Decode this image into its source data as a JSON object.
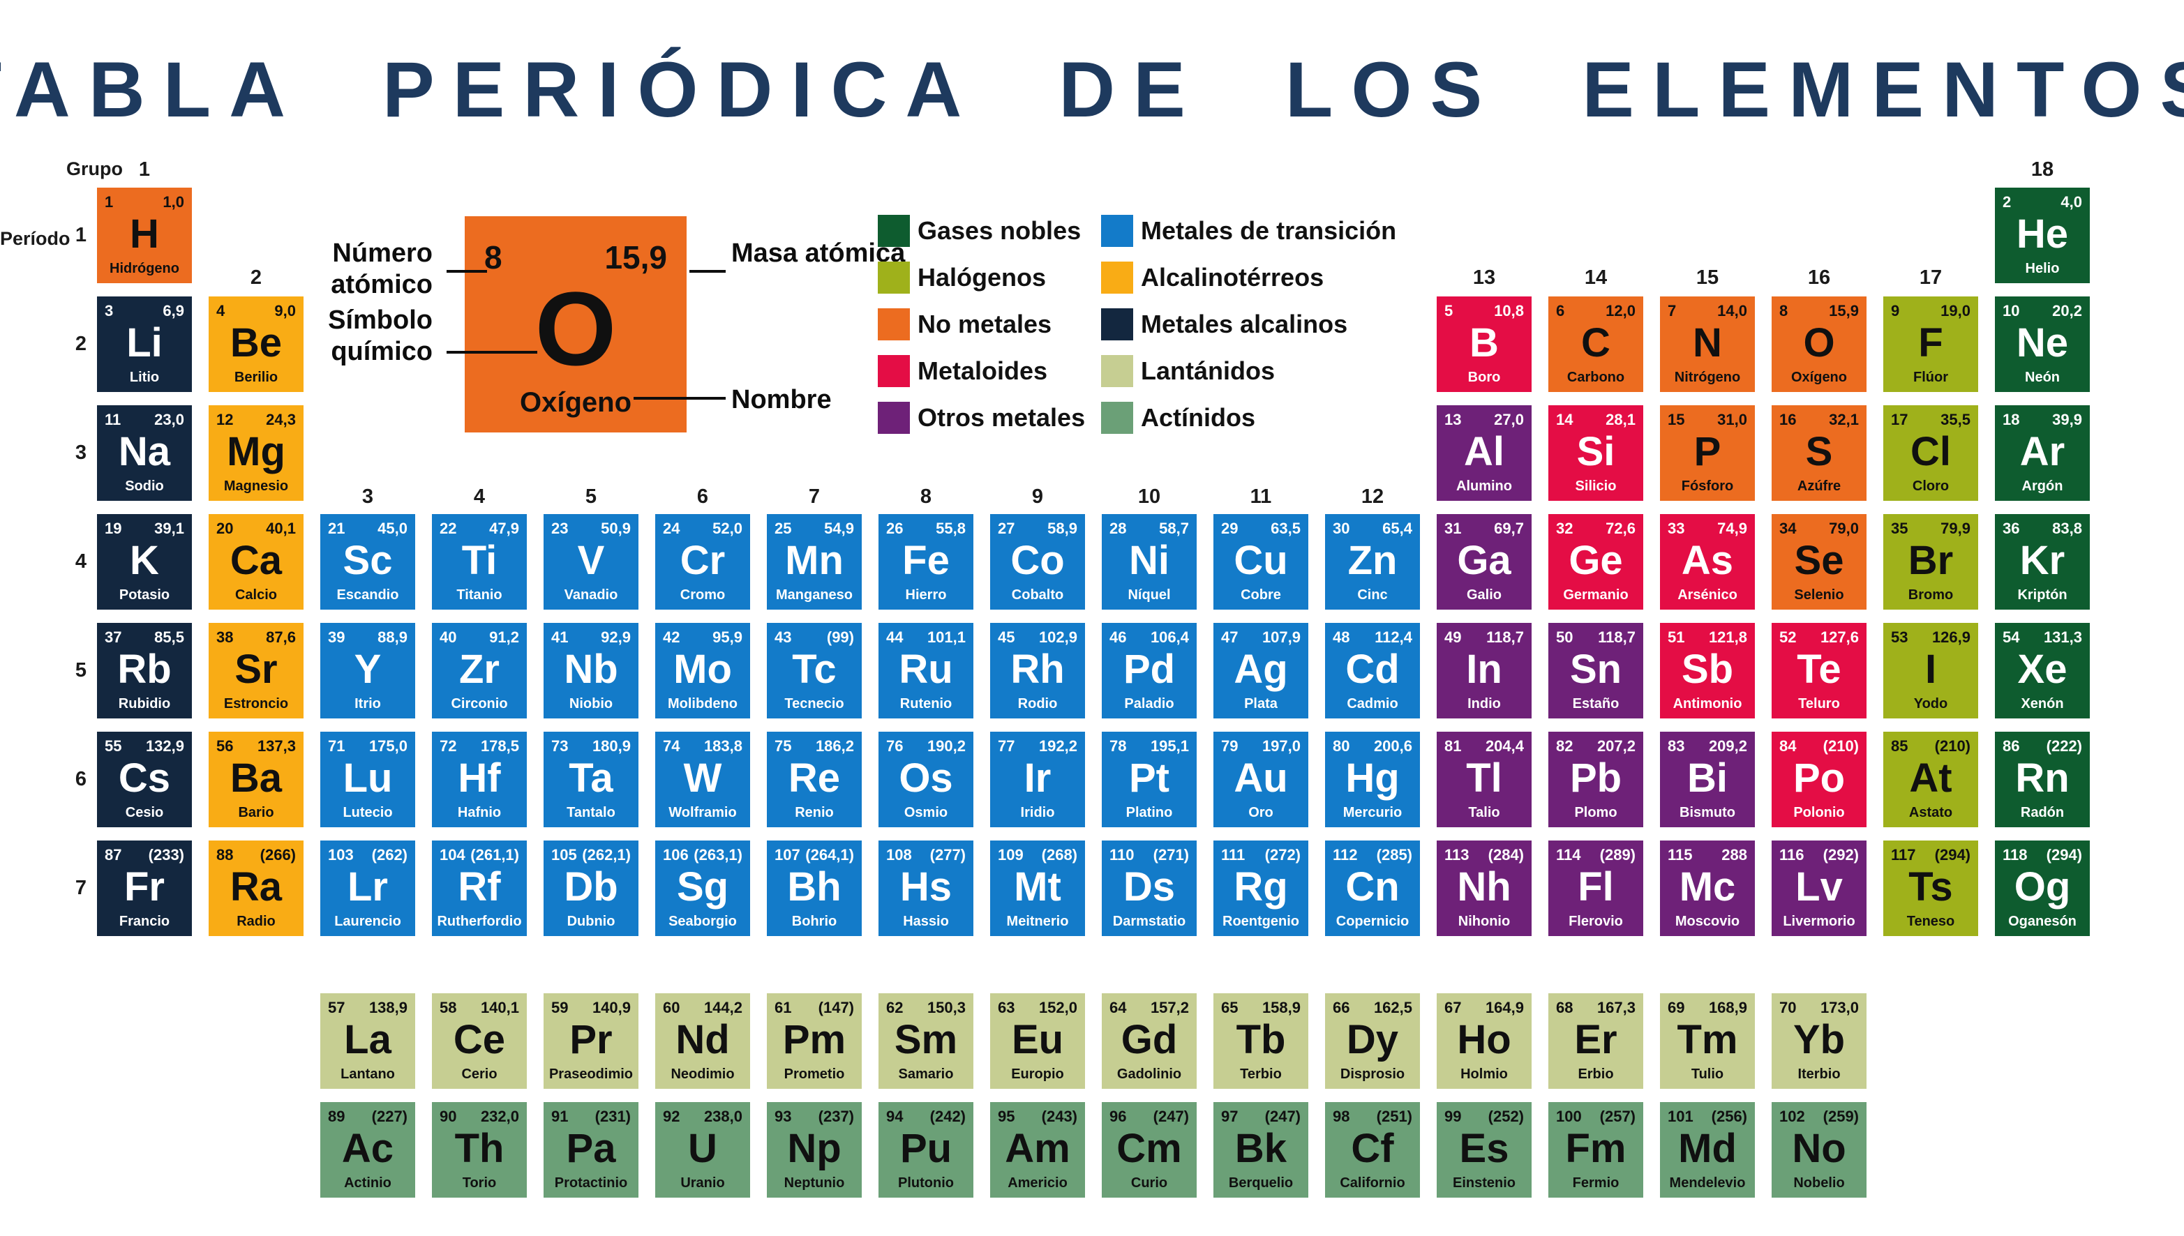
{
  "title": "TABLA PERIÓDICA DE LOS ELEMENTOS",
  "corner_labels": {
    "grupo": "Grupo",
    "periodo": "Período"
  },
  "group_numbers": [
    "1",
    "2",
    "3",
    "4",
    "5",
    "6",
    "7",
    "8",
    "9",
    "10",
    "11",
    "12",
    "13",
    "14",
    "15",
    "16",
    "17",
    "18"
  ],
  "period_numbers": [
    "1",
    "2",
    "3",
    "4",
    "5",
    "6",
    "7"
  ],
  "example": {
    "atomic_number": "8",
    "mass": "15,9",
    "symbol": "O",
    "name": "Oxígeno",
    "label_numero": "Número atómico",
    "label_masa": "Masa atómica",
    "label_simbolo": "Símbolo químico",
    "label_nombre": "Nombre"
  },
  "categories": {
    "alkali": {
      "bg": "#13273f",
      "fg": "#ffffff"
    },
    "alkaline": {
      "bg": "#f9ac15",
      "fg": "#101010"
    },
    "transition": {
      "bg": "#137bc9",
      "fg": "#ffffff"
    },
    "other": {
      "bg": "#6e2178",
      "fg": "#ffffff"
    },
    "metalloid": {
      "bg": "#e40d45",
      "fg": "#ffffff"
    },
    "nonmetal": {
      "bg": "#ec6c20",
      "fg": "#101010"
    },
    "halogen": {
      "bg": "#9fb11b",
      "fg": "#101010"
    },
    "noble": {
      "bg": "#0e5c2f",
      "fg": "#ffffff"
    },
    "lanthanide": {
      "bg": "#c6ce92",
      "fg": "#101010"
    },
    "actinide": {
      "bg": "#6ba077",
      "fg": "#101010"
    }
  },
  "legend": {
    "left": [
      {
        "label": "Gases nobles",
        "cat": "noble"
      },
      {
        "label": "Halógenos",
        "cat": "halogen"
      },
      {
        "label": "No metales",
        "cat": "nonmetal"
      },
      {
        "label": "Metaloides",
        "cat": "metalloid"
      },
      {
        "label": "Otros metales",
        "cat": "other"
      }
    ],
    "right": [
      {
        "label": "Metales de transición",
        "cat": "transition"
      },
      {
        "label": "Alcalinotérreos",
        "cat": "alkaline"
      },
      {
        "label": "Metales alcalinos",
        "cat": "alkali"
      },
      {
        "label": "Lantánidos",
        "cat": "lanthanide"
      },
      {
        "label": "Actínidos",
        "cat": "actinide"
      }
    ]
  },
  "elements": [
    {
      "z": "1",
      "m": "1,0",
      "s": "H",
      "n": "Hidrógeno",
      "c": "nonmetal",
      "p": 1,
      "g": 1
    },
    {
      "z": "2",
      "m": "4,0",
      "s": "He",
      "n": "Helio",
      "c": "noble",
      "p": 1,
      "g": 18
    },
    {
      "z": "3",
      "m": "6,9",
      "s": "Li",
      "n": "Litio",
      "c": "alkali",
      "p": 2,
      "g": 1
    },
    {
      "z": "4",
      "m": "9,0",
      "s": "Be",
      "n": "Berilio",
      "c": "alkaline",
      "p": 2,
      "g": 2
    },
    {
      "z": "5",
      "m": "10,8",
      "s": "B",
      "n": "Boro",
      "c": "metalloid",
      "p": 2,
      "g": 13
    },
    {
      "z": "6",
      "m": "12,0",
      "s": "C",
      "n": "Carbono",
      "c": "nonmetal",
      "p": 2,
      "g": 14
    },
    {
      "z": "7",
      "m": "14,0",
      "s": "N",
      "n": "Nitrógeno",
      "c": "nonmetal",
      "p": 2,
      "g": 15
    },
    {
      "z": "8",
      "m": "15,9",
      "s": "O",
      "n": "Oxígeno",
      "c": "nonmetal",
      "p": 2,
      "g": 16
    },
    {
      "z": "9",
      "m": "19,0",
      "s": "F",
      "n": "Flúor",
      "c": "halogen",
      "p": 2,
      "g": 17
    },
    {
      "z": "10",
      "m": "20,2",
      "s": "Ne",
      "n": "Neón",
      "c": "noble",
      "p": 2,
      "g": 18
    },
    {
      "z": "11",
      "m": "23,0",
      "s": "Na",
      "n": "Sodio",
      "c": "alkali",
      "p": 3,
      "g": 1
    },
    {
      "z": "12",
      "m": "24,3",
      "s": "Mg",
      "n": "Magnesio",
      "c": "alkaline",
      "p": 3,
      "g": 2
    },
    {
      "z": "13",
      "m": "27,0",
      "s": "Al",
      "n": "Alumino",
      "c": "other",
      "p": 3,
      "g": 13
    },
    {
      "z": "14",
      "m": "28,1",
      "s": "Si",
      "n": "Silicio",
      "c": "metalloid",
      "p": 3,
      "g": 14
    },
    {
      "z": "15",
      "m": "31,0",
      "s": "P",
      "n": "Fósforo",
      "c": "nonmetal",
      "p": 3,
      "g": 15
    },
    {
      "z": "16",
      "m": "32,1",
      "s": "S",
      "n": "Azúfre",
      "c": "nonmetal",
      "p": 3,
      "g": 16
    },
    {
      "z": "17",
      "m": "35,5",
      "s": "Cl",
      "n": "Cloro",
      "c": "halogen",
      "p": 3,
      "g": 17
    },
    {
      "z": "18",
      "m": "39,9",
      "s": "Ar",
      "n": "Argón",
      "c": "noble",
      "p": 3,
      "g": 18
    },
    {
      "z": "19",
      "m": "39,1",
      "s": "K",
      "n": "Potasio",
      "c": "alkali",
      "p": 4,
      "g": 1
    },
    {
      "z": "20",
      "m": "40,1",
      "s": "Ca",
      "n": "Calcio",
      "c": "alkaline",
      "p": 4,
      "g": 2
    },
    {
      "z": "21",
      "m": "45,0",
      "s": "Sc",
      "n": "Escandio",
      "c": "transition",
      "p": 4,
      "g": 3
    },
    {
      "z": "22",
      "m": "47,9",
      "s": "Ti",
      "n": "Titanio",
      "c": "transition",
      "p": 4,
      "g": 4
    },
    {
      "z": "23",
      "m": "50,9",
      "s": "V",
      "n": "Vanadio",
      "c": "transition",
      "p": 4,
      "g": 5
    },
    {
      "z": "24",
      "m": "52,0",
      "s": "Cr",
      "n": "Cromo",
      "c": "transition",
      "p": 4,
      "g": 6
    },
    {
      "z": "25",
      "m": "54,9",
      "s": "Mn",
      "n": "Manganeso",
      "c": "transition",
      "p": 4,
      "g": 7
    },
    {
      "z": "26",
      "m": "55,8",
      "s": "Fe",
      "n": "Hierro",
      "c": "transition",
      "p": 4,
      "g": 8
    },
    {
      "z": "27",
      "m": "58,9",
      "s": "Co",
      "n": "Cobalto",
      "c": "transition",
      "p": 4,
      "g": 9
    },
    {
      "z": "28",
      "m": "58,7",
      "s": "Ni",
      "n": "Níquel",
      "c": "transition",
      "p": 4,
      "g": 10
    },
    {
      "z": "29",
      "m": "63,5",
      "s": "Cu",
      "n": "Cobre",
      "c": "transition",
      "p": 4,
      "g": 11
    },
    {
      "z": "30",
      "m": "65,4",
      "s": "Zn",
      "n": "Cinc",
      "c": "transition",
      "p": 4,
      "g": 12
    },
    {
      "z": "31",
      "m": "69,7",
      "s": "Ga",
      "n": "Galio",
      "c": "other",
      "p": 4,
      "g": 13
    },
    {
      "z": "32",
      "m": "72,6",
      "s": "Ge",
      "n": "Germanio",
      "c": "metalloid",
      "p": 4,
      "g": 14
    },
    {
      "z": "33",
      "m": "74,9",
      "s": "As",
      "n": "Arsénico",
      "c": "metalloid",
      "p": 4,
      "g": 15
    },
    {
      "z": "34",
      "m": "79,0",
      "s": "Se",
      "n": "Selenio",
      "c": "nonmetal",
      "p": 4,
      "g": 16
    },
    {
      "z": "35",
      "m": "79,9",
      "s": "Br",
      "n": "Bromo",
      "c": "halogen",
      "p": 4,
      "g": 17
    },
    {
      "z": "36",
      "m": "83,8",
      "s": "Kr",
      "n": "Kriptón",
      "c": "noble",
      "p": 4,
      "g": 18
    },
    {
      "z": "37",
      "m": "85,5",
      "s": "Rb",
      "n": "Rubidio",
      "c": "alkali",
      "p": 5,
      "g": 1
    },
    {
      "z": "38",
      "m": "87,6",
      "s": "Sr",
      "n": "Estroncio",
      "c": "alkaline",
      "p": 5,
      "g": 2
    },
    {
      "z": "39",
      "m": "88,9",
      "s": "Y",
      "n": "Itrio",
      "c": "transition",
      "p": 5,
      "g": 3
    },
    {
      "z": "40",
      "m": "91,2",
      "s": "Zr",
      "n": "Circonio",
      "c": "transition",
      "p": 5,
      "g": 4
    },
    {
      "z": "41",
      "m": "92,9",
      "s": "Nb",
      "n": "Niobio",
      "c": "transition",
      "p": 5,
      "g": 5
    },
    {
      "z": "42",
      "m": "95,9",
      "s": "Mo",
      "n": "Molibdeno",
      "c": "transition",
      "p": 5,
      "g": 6
    },
    {
      "z": "43",
      "m": "(99)",
      "s": "Tc",
      "n": "Tecnecio",
      "c": "transition",
      "p": 5,
      "g": 7
    },
    {
      "z": "44",
      "m": "101,1",
      "s": "Ru",
      "n": "Rutenio",
      "c": "transition",
      "p": 5,
      "g": 8
    },
    {
      "z": "45",
      "m": "102,9",
      "s": "Rh",
      "n": "Rodio",
      "c": "transition",
      "p": 5,
      "g": 9
    },
    {
      "z": "46",
      "m": "106,4",
      "s": "Pd",
      "n": "Paladio",
      "c": "transition",
      "p": 5,
      "g": 10
    },
    {
      "z": "47",
      "m": "107,9",
      "s": "Ag",
      "n": "Plata",
      "c": "transition",
      "p": 5,
      "g": 11
    },
    {
      "z": "48",
      "m": "112,4",
      "s": "Cd",
      "n": "Cadmio",
      "c": "transition",
      "p": 5,
      "g": 12
    },
    {
      "z": "49",
      "m": "118,7",
      "s": "In",
      "n": "Indio",
      "c": "other",
      "p": 5,
      "g": 13
    },
    {
      "z": "50",
      "m": "118,7",
      "s": "Sn",
      "n": "Estaño",
      "c": "other",
      "p": 5,
      "g": 14
    },
    {
      "z": "51",
      "m": "121,8",
      "s": "Sb",
      "n": "Antimonio",
      "c": "metalloid",
      "p": 5,
      "g": 15
    },
    {
      "z": "52",
      "m": "127,6",
      "s": "Te",
      "n": "Teluro",
      "c": "metalloid",
      "p": 5,
      "g": 16
    },
    {
      "z": "53",
      "m": "126,9",
      "s": "I",
      "n": "Yodo",
      "c": "halogen",
      "p": 5,
      "g": 17
    },
    {
      "z": "54",
      "m": "131,3",
      "s": "Xe",
      "n": "Xenón",
      "c": "noble",
      "p": 5,
      "g": 18
    },
    {
      "z": "55",
      "m": "132,9",
      "s": "Cs",
      "n": "Cesio",
      "c": "alkali",
      "p": 6,
      "g": 1
    },
    {
      "z": "56",
      "m": "137,3",
      "s": "Ba",
      "n": "Bario",
      "c": "alkaline",
      "p": 6,
      "g": 2
    },
    {
      "z": "71",
      "m": "175,0",
      "s": "Lu",
      "n": "Lutecio",
      "c": "transition",
      "p": 6,
      "g": 3
    },
    {
      "z": "72",
      "m": "178,5",
      "s": "Hf",
      "n": "Hafnio",
      "c": "transition",
      "p": 6,
      "g": 4
    },
    {
      "z": "73",
      "m": "180,9",
      "s": "Ta",
      "n": "Tantalo",
      "c": "transition",
      "p": 6,
      "g": 5
    },
    {
      "z": "74",
      "m": "183,8",
      "s": "W",
      "n": "Wolframio",
      "c": "transition",
      "p": 6,
      "g": 6
    },
    {
      "z": "75",
      "m": "186,2",
      "s": "Re",
      "n": "Renio",
      "c": "transition",
      "p": 6,
      "g": 7
    },
    {
      "z": "76",
      "m": "190,2",
      "s": "Os",
      "n": "Osmio",
      "c": "transition",
      "p": 6,
      "g": 8
    },
    {
      "z": "77",
      "m": "192,2",
      "s": "Ir",
      "n": "Iridio",
      "c": "transition",
      "p": 6,
      "g": 9
    },
    {
      "z": "78",
      "m": "195,1",
      "s": "Pt",
      "n": "Platino",
      "c": "transition",
      "p": 6,
      "g": 10
    },
    {
      "z": "79",
      "m": "197,0",
      "s": "Au",
      "n": "Oro",
      "c": "transition",
      "p": 6,
      "g": 11
    },
    {
      "z": "80",
      "m": "200,6",
      "s": "Hg",
      "n": "Mercurio",
      "c": "transition",
      "p": 6,
      "g": 12
    },
    {
      "z": "81",
      "m": "204,4",
      "s": "Tl",
      "n": "Talio",
      "c": "other",
      "p": 6,
      "g": 13
    },
    {
      "z": "82",
      "m": "207,2",
      "s": "Pb",
      "n": "Plomo",
      "c": "other",
      "p": 6,
      "g": 14
    },
    {
      "z": "83",
      "m": "209,2",
      "s": "Bi",
      "n": "Bismuto",
      "c": "other",
      "p": 6,
      "g": 15
    },
    {
      "z": "84",
      "m": "(210)",
      "s": "Po",
      "n": "Polonio",
      "c": "metalloid",
      "p": 6,
      "g": 16
    },
    {
      "z": "85",
      "m": "(210)",
      "s": "At",
      "n": "Astato",
      "c": "halogen",
      "p": 6,
      "g": 17
    },
    {
      "z": "86",
      "m": "(222)",
      "s": "Rn",
      "n": "Radón",
      "c": "noble",
      "p": 6,
      "g": 18
    },
    {
      "z": "87",
      "m": "(233)",
      "s": "Fr",
      "n": "Francio",
      "c": "alkali",
      "p": 7,
      "g": 1
    },
    {
      "z": "88",
      "m": "(266)",
      "s": "Ra",
      "n": "Radio",
      "c": "alkaline",
      "p": 7,
      "g": 2
    },
    {
      "z": "103",
      "m": "(262)",
      "s": "Lr",
      "n": "Laurencio",
      "c": "transition",
      "p": 7,
      "g": 3
    },
    {
      "z": "104",
      "m": "(261,1)",
      "s": "Rf",
      "n": "Rutherfordio",
      "c": "transition",
      "p": 7,
      "g": 4
    },
    {
      "z": "105",
      "m": "(262,1)",
      "s": "Db",
      "n": "Dubnio",
      "c": "transition",
      "p": 7,
      "g": 5
    },
    {
      "z": "106",
      "m": "(263,1)",
      "s": "Sg",
      "n": "Seaborgio",
      "c": "transition",
      "p": 7,
      "g": 6
    },
    {
      "z": "107",
      "m": "(264,1)",
      "s": "Bh",
      "n": "Bohrio",
      "c": "transition",
      "p": 7,
      "g": 7
    },
    {
      "z": "108",
      "m": "(277)",
      "s": "Hs",
      "n": "Hassio",
      "c": "transition",
      "p": 7,
      "g": 8
    },
    {
      "z": "109",
      "m": "(268)",
      "s": "Mt",
      "n": "Meitnerio",
      "c": "transition",
      "p": 7,
      "g": 9
    },
    {
      "z": "110",
      "m": "(271)",
      "s": "Ds",
      "n": "Darmstatio",
      "c": "transition",
      "p": 7,
      "g": 10
    },
    {
      "z": "111",
      "m": "(272)",
      "s": "Rg",
      "n": "Roentgenio",
      "c": "transition",
      "p": 7,
      "g": 11
    },
    {
      "z": "112",
      "m": "(285)",
      "s": "Cn",
      "n": "Copernicio",
      "c": "transition",
      "p": 7,
      "g": 12
    },
    {
      "z": "113",
      "m": "(284)",
      "s": "Nh",
      "n": "Nihonio",
      "c": "other",
      "p": 7,
      "g": 13
    },
    {
      "z": "114",
      "m": "(289)",
      "s": "Fl",
      "n": "Flerovio",
      "c": "other",
      "p": 7,
      "g": 14
    },
    {
      "z": "115",
      "m": "288",
      "s": "Mc",
      "n": "Moscovio",
      "c": "other",
      "p": 7,
      "g": 15
    },
    {
      "z": "116",
      "m": "(292)",
      "s": "Lv",
      "n": "Livermorio",
      "c": "other",
      "p": 7,
      "g": 16
    },
    {
      "z": "117",
      "m": "(294)",
      "s": "Ts",
      "n": "Teneso",
      "c": "halogen",
      "p": 7,
      "g": 17
    },
    {
      "z": "118",
      "m": "(294)",
      "s": "Og",
      "n": "Oganesón",
      "c": "noble",
      "p": 7,
      "g": 18
    }
  ],
  "lanthanides": [
    {
      "z": "57",
      "m": "138,9",
      "s": "La",
      "n": "Lantano",
      "c": "lanthanide"
    },
    {
      "z": "58",
      "m": "140,1",
      "s": "Ce",
      "n": "Cerio",
      "c": "lanthanide"
    },
    {
      "z": "59",
      "m": "140,9",
      "s": "Pr",
      "n": "Praseodimio",
      "c": "lanthanide"
    },
    {
      "z": "60",
      "m": "144,2",
      "s": "Nd",
      "n": "Neodimio",
      "c": "lanthanide"
    },
    {
      "z": "61",
      "m": "(147)",
      "s": "Pm",
      "n": "Prometio",
      "c": "lanthanide"
    },
    {
      "z": "62",
      "m": "150,3",
      "s": "Sm",
      "n": "Samario",
      "c": "lanthanide"
    },
    {
      "z": "63",
      "m": "152,0",
      "s": "Eu",
      "n": "Europio",
      "c": "lanthanide"
    },
    {
      "z": "64",
      "m": "157,2",
      "s": "Gd",
      "n": "Gadolinio",
      "c": "lanthanide"
    },
    {
      "z": "65",
      "m": "158,9",
      "s": "Tb",
      "n": "Terbio",
      "c": "lanthanide"
    },
    {
      "z": "66",
      "m": "162,5",
      "s": "Dy",
      "n": "Disprosio",
      "c": "lanthanide"
    },
    {
      "z": "67",
      "m": "164,9",
      "s": "Ho",
      "n": "Holmio",
      "c": "lanthanide"
    },
    {
      "z": "68",
      "m": "167,3",
      "s": "Er",
      "n": "Erbio",
      "c": "lanthanide"
    },
    {
      "z": "69",
      "m": "168,9",
      "s": "Tm",
      "n": "Tulio",
      "c": "lanthanide"
    },
    {
      "z": "70",
      "m": "173,0",
      "s": "Yb",
      "n": "Iterbio",
      "c": "lanthanide"
    }
  ],
  "actinides": [
    {
      "z": "89",
      "m": "(227)",
      "s": "Ac",
      "n": "Actinio",
      "c": "actinide"
    },
    {
      "z": "90",
      "m": "232,0",
      "s": "Th",
      "n": "Torio",
      "c": "actinide"
    },
    {
      "z": "91",
      "m": "(231)",
      "s": "Pa",
      "n": "Protactinio",
      "c": "actinide"
    },
    {
      "z": "92",
      "m": "238,0",
      "s": "U",
      "n": "Uranio",
      "c": "actinide"
    },
    {
      "z": "93",
      "m": "(237)",
      "s": "Np",
      "n": "Neptunio",
      "c": "actinide"
    },
    {
      "z": "94",
      "m": "(242)",
      "s": "Pu",
      "n": "Plutonio",
      "c": "actinide"
    },
    {
      "z": "95",
      "m": "(243)",
      "s": "Am",
      "n": "Americio",
      "c": "actinide"
    },
    {
      "z": "96",
      "m": "(247)",
      "s": "Cm",
      "n": "Curio",
      "c": "actinide"
    },
    {
      "z": "97",
      "m": "(247)",
      "s": "Bk",
      "n": "Berquelio",
      "c": "actinide"
    },
    {
      "z": "98",
      "m": "(251)",
      "s": "Cf",
      "n": "Californio",
      "c": "actinide"
    },
    {
      "z": "99",
      "m": "(252)",
      "s": "Es",
      "n": "Einstenio",
      "c": "actinide"
    },
    {
      "z": "100",
      "m": "(257)",
      "s": "Fm",
      "n": "Fermio",
      "c": "actinide"
    },
    {
      "z": "101",
      "m": "(256)",
      "s": "Md",
      "n": "Mendelevio",
      "c": "actinide"
    },
    {
      "z": "102",
      "m": "(259)",
      "s": "No",
      "n": "Nobelio",
      "c": "actinide"
    }
  ]
}
